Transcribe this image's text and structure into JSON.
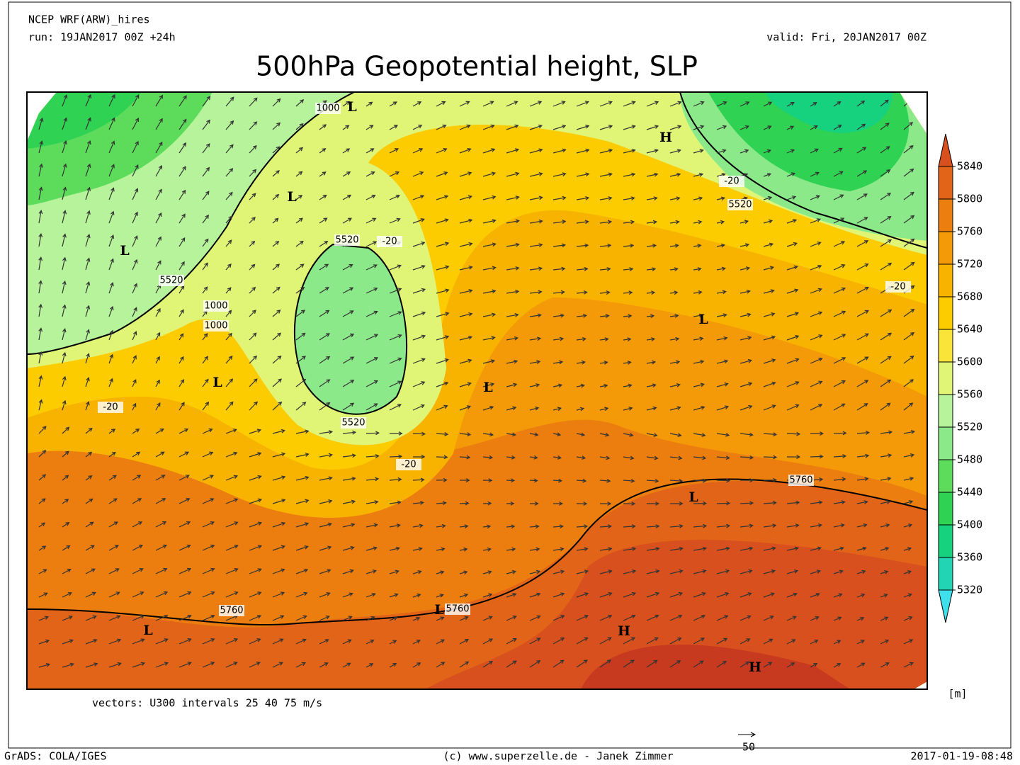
{
  "header": {
    "model": "NCEP WRF(ARW)_hires",
    "run": "run: 19JAN2017 00Z +24h",
    "valid": "valid: Fri, 20JAN2017 00Z",
    "title": "500hPa Geopotential height, SLP"
  },
  "colorbar": {
    "levels": [
      5320,
      5360,
      5400,
      5440,
      5480,
      5520,
      5560,
      5600,
      5640,
      5680,
      5720,
      5760,
      5800,
      5840
    ],
    "colors": [
      "#3ee0ec",
      "#22d4b4",
      "#16d27e",
      "#2fd252",
      "#5ddc5c",
      "#8ce98a",
      "#b6f39a",
      "#e0f576",
      "#fbe43a",
      "#fccb00",
      "#f8b200",
      "#f49a08",
      "#ec7e10",
      "#e26418",
      "#d8501e",
      "#c83a20"
    ],
    "unit": "[m]"
  },
  "map_labels": [
    "L",
    "1000",
    "H",
    "-20",
    "5520",
    "L",
    "5520",
    "-20",
    "L",
    "5520",
    "-20",
    "1000",
    "1000",
    "L",
    "L",
    "L",
    "-20",
    "5520",
    "-20",
    "5760",
    "L",
    "5760",
    "L",
    "5760",
    "L",
    "H",
    "H"
  ],
  "footer": {
    "vectors": "vectors: U300 intervals 25 40 75 m/s",
    "grads": "GrADS: COLA/IGES",
    "credit": "(c) www.superzelle.de - Janek Zimmer",
    "ref_vector": "50",
    "timestamp": "2017-01-19-08:48"
  }
}
